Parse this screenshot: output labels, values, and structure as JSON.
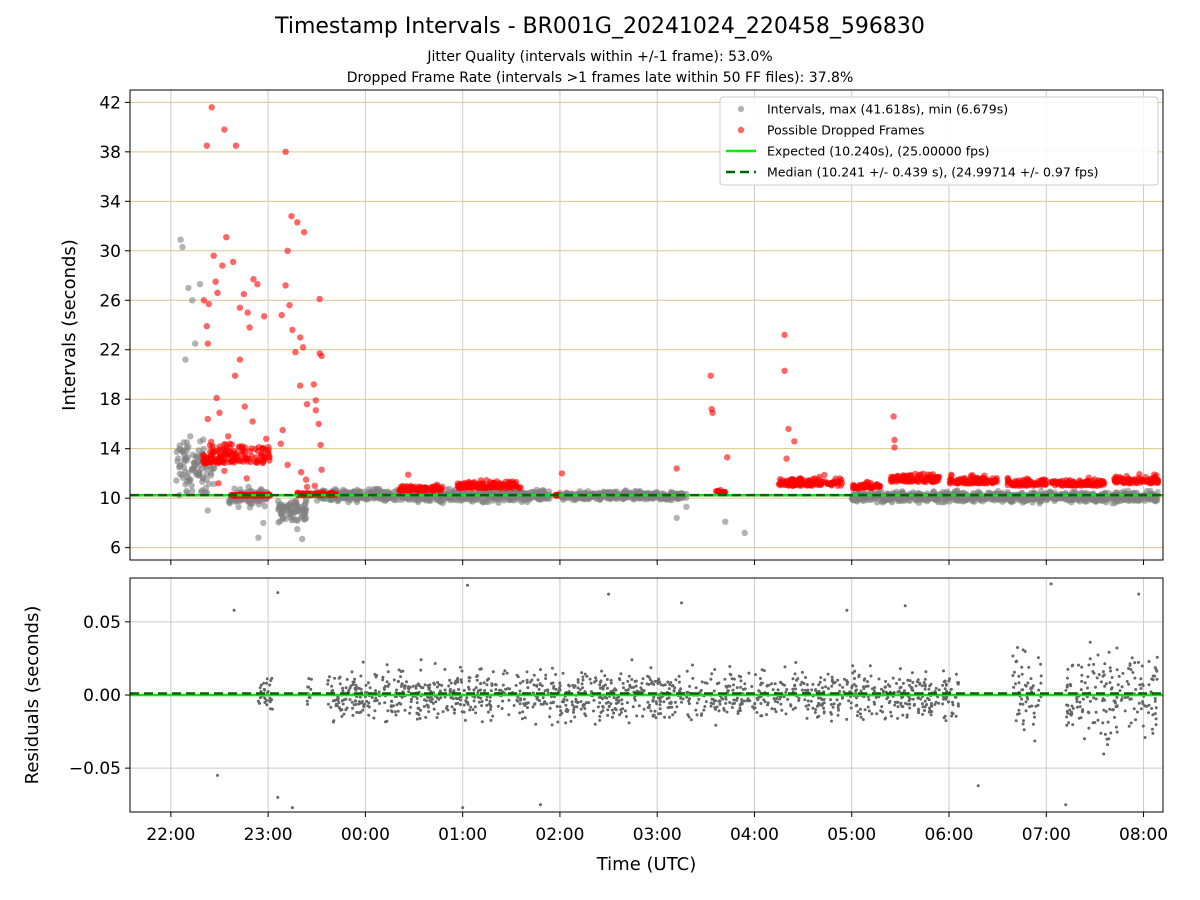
{
  "title": "Timestamp Intervals - BR001G_20241024_220458_596830",
  "subtitle_1": "Jitter Quality (intervals within +/-1 frame): 53.0%",
  "subtitle_2": "Dropped Frame Rate (intervals >1 frames late within 50 FF files): 37.8%",
  "colors": {
    "intervals": "#808080",
    "dropped": "#ff0000",
    "expected": "#00ee00",
    "median": "#006400",
    "hgrid_top": "#d9c88a",
    "grid": "#cccccc"
  },
  "chart_data": [
    {
      "type": "scatter",
      "panel": "intervals",
      "ylabel": "Intervals (seconds)",
      "xlabel": "",
      "x_ticks": [
        "22:00",
        "23:00",
        "00:00",
        "01:00",
        "02:00",
        "03:00",
        "04:00",
        "05:00",
        "06:00",
        "07:00",
        "08:00"
      ],
      "x_range_hours": [
        -0.42,
        10.2
      ],
      "ylim": [
        5,
        43
      ],
      "y_ticks": [
        6,
        10,
        14,
        18,
        22,
        26,
        30,
        34,
        38,
        42
      ],
      "grid": "on",
      "legend_position": "upper right",
      "legend": [
        "Intervals, max (41.618s), min (6.679s)",
        "Possible Dropped Frames",
        "Expected (10.240s), (25.00000 fps)",
        "Median (10.241 +/- 0.439 s), (24.99714 +/- 0.97 fps)"
      ],
      "expected": 10.24,
      "median": 10.241,
      "max": 41.618,
      "min": 6.679,
      "series": [
        {
          "name": "Intervals, max (41.618s), min (6.679s)",
          "segments": [
            {
              "from": 0.05,
              "to": 0.45,
              "center": 12.5,
              "spread": 3.0
            },
            {
              "from": 0.6,
              "to": 1.0,
              "center": 10.1,
              "spread": 1.0
            },
            {
              "from": 1.1,
              "to": 1.4,
              "center": 9.0,
              "spread": 1.4
            },
            {
              "from": 1.5,
              "to": 3.9,
              "center": 10.2,
              "spread": 0.7
            },
            {
              "from": 4.0,
              "to": 5.3,
              "center": 10.2,
              "spread": 0.5
            },
            {
              "from": 7.0,
              "to": 10.15,
              "center": 10.1,
              "spread": 0.6
            }
          ],
          "extra_points": [
            [
              0.1,
              30.9
            ],
            [
              0.12,
              30.3
            ],
            [
              0.18,
              27.0
            ],
            [
              0.22,
              26.0
            ],
            [
              0.25,
              22.5
            ],
            [
              0.3,
              27.3
            ],
            [
              0.15,
              21.2
            ],
            [
              0.2,
              15.0
            ],
            [
              0.28,
              13.3
            ],
            [
              0.38,
              9.0
            ],
            [
              0.9,
              6.8
            ],
            [
              0.95,
              8.0
            ],
            [
              1.3,
              7.5
            ],
            [
              1.35,
              6.7
            ],
            [
              5.2,
              8.4
            ],
            [
              5.7,
              8.1
            ],
            [
              5.9,
              7.2
            ],
            [
              5.3,
              9.3
            ]
          ]
        },
        {
          "name": "Possible Dropped Frames",
          "points": [
            [
              0.42,
              41.6
            ],
            [
              0.37,
              38.5
            ],
            [
              0.55,
              39.8
            ],
            [
              0.67,
              38.5
            ],
            [
              1.18,
              38.0
            ],
            [
              1.24,
              32.8
            ],
            [
              1.3,
              32.3
            ],
            [
              1.37,
              31.5
            ],
            [
              0.57,
              31.1
            ],
            [
              1.2,
              30.0
            ],
            [
              0.44,
              29.6
            ],
            [
              0.53,
              28.8
            ],
            [
              0.64,
              29.1
            ],
            [
              0.46,
              27.5
            ],
            [
              0.85,
              27.7
            ],
            [
              0.89,
              27.3
            ],
            [
              1.18,
              27.2
            ],
            [
              0.48,
              26.6
            ],
            [
              0.75,
              26.5
            ],
            [
              0.34,
              26.0
            ],
            [
              0.39,
              25.7
            ],
            [
              1.53,
              26.1
            ],
            [
              0.71,
              25.4
            ],
            [
              0.79,
              25.0
            ],
            [
              0.96,
              24.7
            ],
            [
              1.22,
              25.6
            ],
            [
              1.14,
              24.8
            ],
            [
              0.37,
              23.9
            ],
            [
              0.81,
              23.8
            ],
            [
              1.25,
              23.6
            ],
            [
              1.33,
              23.0
            ],
            [
              0.38,
              22.5
            ],
            [
              1.36,
              22.2
            ],
            [
              1.53,
              21.7
            ],
            [
              1.55,
              21.5
            ],
            [
              0.71,
              21.2
            ],
            [
              1.28,
              21.8
            ],
            [
              0.66,
              19.9
            ],
            [
              1.33,
              19.1
            ],
            [
              1.47,
              19.2
            ],
            [
              0.47,
              18.1
            ],
            [
              1.4,
              17.6
            ],
            [
              0.76,
              17.4
            ],
            [
              1.49,
              17.9
            ],
            [
              1.49,
              17.1
            ],
            [
              0.38,
              16.4
            ],
            [
              0.5,
              16.9
            ],
            [
              0.84,
              16.2
            ],
            [
              1.52,
              16.0
            ],
            [
              1.15,
              15.5
            ],
            [
              0.59,
              15.0
            ],
            [
              1.13,
              14.4
            ],
            [
              1.54,
              14.3
            ],
            [
              0.73,
              14.2
            ],
            [
              0.44,
              13.7
            ],
            [
              0.61,
              13.5
            ],
            [
              0.92,
              13.0
            ],
            [
              1.2,
              12.7
            ],
            [
              1.55,
              12.3
            ],
            [
              1.34,
              12.1
            ],
            [
              0.55,
              12.2
            ],
            [
              0.78,
              11.6
            ],
            [
              1.39,
              11.5
            ],
            [
              0.49,
              11.2
            ],
            [
              5.72,
              13.3
            ],
            [
              5.2,
              12.4
            ],
            [
              4.02,
              12.0
            ],
            [
              3.12,
              11.3
            ],
            [
              0.98,
              14.8
            ],
            [
              5.55,
              19.9
            ],
            [
              5.56,
              17.2
            ],
            [
              5.57,
              16.9
            ],
            [
              6.31,
              23.2
            ],
            [
              6.31,
              20.3
            ],
            [
              6.35,
              15.6
            ],
            [
              6.41,
              14.6
            ],
            [
              6.33,
              13.2
            ],
            [
              7.43,
              16.6
            ],
            [
              7.44,
              14.7
            ],
            [
              7.44,
              14.1
            ],
            [
              2.44,
              11.9
            ],
            [
              1.4,
              10.9
            ],
            [
              1.48,
              11.0
            ]
          ],
          "segments": [
            {
              "from": 0.33,
              "to": 1.02,
              "center": 12.8,
              "spread": 2.2
            },
            {
              "from": 0.62,
              "to": 1.02,
              "center": 10.2,
              "spread": 0.15
            },
            {
              "from": 1.3,
              "to": 1.7,
              "center": 10.25,
              "spread": 0.3
            },
            {
              "from": 2.35,
              "to": 2.8,
              "center": 10.6,
              "spread": 0.6
            },
            {
              "from": 2.95,
              "to": 3.6,
              "center": 10.8,
              "spread": 0.8
            },
            {
              "from": 3.95,
              "to": 3.98,
              "center": 10.2,
              "spread": 0.2
            },
            {
              "from": 5.6,
              "to": 5.7,
              "center": 10.4,
              "spread": 0.3
            },
            {
              "from": 6.25,
              "to": 6.9,
              "center": 11.0,
              "spread": 1.0
            },
            {
              "from": 7.0,
              "to": 7.3,
              "center": 10.8,
              "spread": 0.6
            },
            {
              "from": 7.4,
              "to": 7.9,
              "center": 11.3,
              "spread": 0.9
            },
            {
              "from": 8.0,
              "to": 8.5,
              "center": 11.2,
              "spread": 0.8
            },
            {
              "from": 8.6,
              "to": 9.0,
              "center": 11.0,
              "spread": 0.7
            },
            {
              "from": 9.05,
              "to": 9.6,
              "center": 11.0,
              "spread": 0.7
            },
            {
              "from": 9.7,
              "to": 10.15,
              "center": 11.2,
              "spread": 0.8
            }
          ]
        },
        {
          "name": "Expected (10.240s), (25.00000 fps)",
          "y": 10.24
        },
        {
          "name": "Median (10.241 +/- 0.439 s), (24.99714 +/- 0.97 fps)",
          "y": 10.241
        }
      ]
    },
    {
      "type": "scatter",
      "panel": "residuals",
      "ylabel": "Residuals (seconds)",
      "xlabel": "Time (UTC)",
      "x_ticks": [
        "22:00",
        "23:00",
        "00:00",
        "01:00",
        "02:00",
        "03:00",
        "04:00",
        "05:00",
        "06:00",
        "07:00",
        "08:00"
      ],
      "x_range_hours": [
        -0.42,
        10.2
      ],
      "ylim": [
        -0.08,
        0.08
      ],
      "y_ticks": [
        "−0.05",
        "0.00",
        "0.05"
      ],
      "y_tick_values": [
        -0.05,
        0.0,
        0.05
      ],
      "grid": "on",
      "series": [
        {
          "name": "",
          "segments": [
            {
              "from": 0.9,
              "to": 1.05,
              "center": 0.0,
              "spread": 0.02
            },
            {
              "from": 1.4,
              "to": 1.45,
              "center": 0.005,
              "spread": 0.02
            },
            {
              "from": 1.6,
              "to": 8.1,
              "center": 0.0,
              "spread": 0.025
            },
            {
              "from": 8.65,
              "to": 8.95,
              "center": 0.0,
              "spread": 0.04
            },
            {
              "from": 9.2,
              "to": 10.15,
              "center": 0.0,
              "spread": 0.045
            }
          ],
          "extra_points": [
            [
              0.65,
              0.058
            ],
            [
              0.48,
              -0.055
            ],
            [
              1.1,
              0.07
            ],
            [
              1.1,
              -0.07
            ],
            [
              1.25,
              -0.077
            ],
            [
              3.05,
              0.075
            ],
            [
              3.0,
              -0.077
            ],
            [
              3.8,
              -0.075
            ],
            [
              4.5,
              0.069
            ],
            [
              5.25,
              0.063
            ],
            [
              6.95,
              0.058
            ],
            [
              7.55,
              0.061
            ],
            [
              8.3,
              -0.062
            ],
            [
              9.05,
              0.076
            ],
            [
              9.2,
              -0.075
            ],
            [
              9.95,
              0.069
            ]
          ]
        },
        {
          "name": "Expected",
          "y": 0.0
        },
        {
          "name": "Median",
          "y": 0.001
        }
      ]
    }
  ]
}
